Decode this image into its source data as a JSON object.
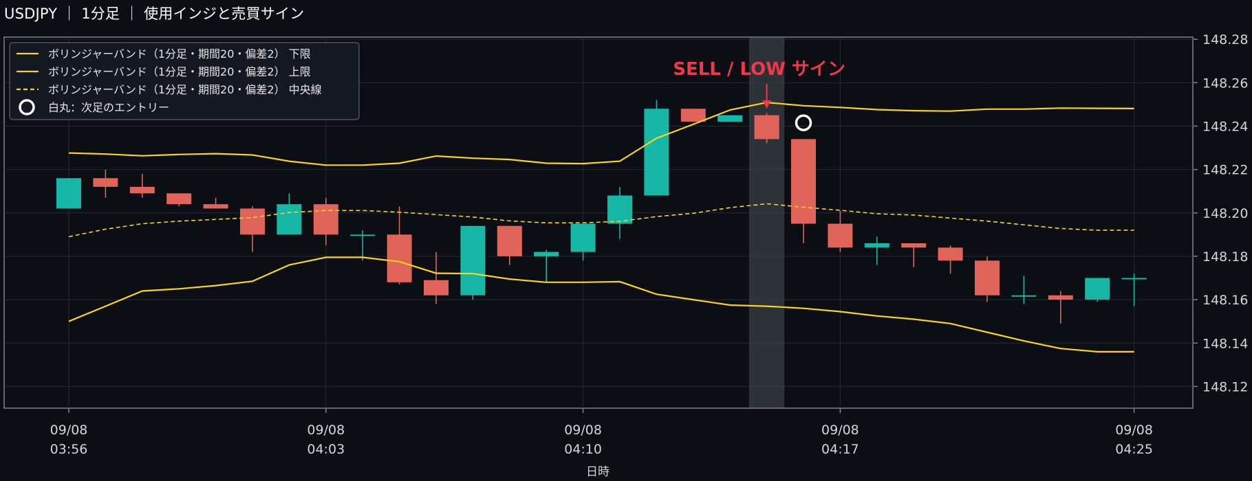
{
  "header": {
    "title": "USDJPY ｜ 1分足 ｜ 使用インジと売買サイン"
  },
  "colors": {
    "background": "#0b0e13",
    "up": "#16b7a6",
    "down": "#e0645a",
    "band": "#ffd21f",
    "signal": "#f2384a",
    "highlight": "#3a3e45",
    "grid": "#262b33",
    "axis": "#7d838c"
  },
  "annotation": {
    "signal_label": "SELL / LOW サイン"
  },
  "chart_data": {
    "type": "candlestick",
    "x": [
      "09/08 03:56",
      "09/08 03:57",
      "09/08 03:58",
      "09/08 03:59",
      "09/08 04:00",
      "09/08 04:01",
      "09/08 04:02",
      "09/08 04:03",
      "09/08 04:04",
      "09/08 04:05",
      "09/08 04:06",
      "09/08 04:07",
      "09/08 04:08",
      "09/08 04:09",
      "09/08 04:10",
      "09/08 04:11",
      "09/08 04:12",
      "09/08 04:13",
      "09/08 04:14",
      "09/08 04:15",
      "09/08 04:16",
      "09/08 04:17",
      "09/08 04:18",
      "09/08 04:19",
      "09/08 04:20",
      "09/08 04:21",
      "09/08 04:22",
      "09/08 04:23",
      "09/08 04:24",
      "09/08 04:25"
    ],
    "ohlc": [
      {
        "o": 148.202,
        "h": 148.216,
        "l": 148.202,
        "c": 148.216
      },
      {
        "o": 148.216,
        "h": 148.22,
        "l": 148.207,
        "c": 148.212
      },
      {
        "o": 148.212,
        "h": 148.218,
        "l": 148.207,
        "c": 148.209
      },
      {
        "o": 148.209,
        "h": 148.209,
        "l": 148.203,
        "c": 148.204
      },
      {
        "o": 148.204,
        "h": 148.207,
        "l": 148.202,
        "c": 148.202
      },
      {
        "o": 148.202,
        "h": 148.203,
        "l": 148.182,
        "c": 148.19
      },
      {
        "o": 148.19,
        "h": 148.209,
        "l": 148.19,
        "c": 148.204
      },
      {
        "o": 148.204,
        "h": 148.207,
        "l": 148.185,
        "c": 148.19
      },
      {
        "o": 148.19,
        "h": 148.192,
        "l": 148.178,
        "c": 148.19
      },
      {
        "o": 148.19,
        "h": 148.203,
        "l": 148.167,
        "c": 148.168
      },
      {
        "o": 148.169,
        "h": 148.182,
        "l": 148.158,
        "c": 148.162
      },
      {
        "o": 148.162,
        "h": 148.194,
        "l": 148.16,
        "c": 148.194
      },
      {
        "o": 148.194,
        "h": 148.194,
        "l": 148.176,
        "c": 148.18
      },
      {
        "o": 148.18,
        "h": 148.183,
        "l": 148.168,
        "c": 148.182
      },
      {
        "o": 148.182,
        "h": 148.195,
        "l": 148.178,
        "c": 148.195
      },
      {
        "o": 148.195,
        "h": 148.212,
        "l": 148.188,
        "c": 148.208
      },
      {
        "o": 148.208,
        "h": 148.252,
        "l": 148.208,
        "c": 148.248
      },
      {
        "o": 148.248,
        "h": 148.248,
        "l": 148.242,
        "c": 148.242
      },
      {
        "o": 148.242,
        "h": 148.245,
        "l": 148.242,
        "c": 148.245
      },
      {
        "o": 148.245,
        "h": 148.246,
        "l": 148.232,
        "c": 148.234
      },
      {
        "o": 148.234,
        "h": 148.234,
        "l": 148.186,
        "c": 148.195
      },
      {
        "o": 148.195,
        "h": 148.201,
        "l": 148.182,
        "c": 148.184
      },
      {
        "o": 148.184,
        "h": 148.189,
        "l": 148.176,
        "c": 148.186
      },
      {
        "o": 148.186,
        "h": 148.186,
        "l": 148.175,
        "c": 148.184
      },
      {
        "o": 148.184,
        "h": 148.185,
        "l": 148.172,
        "c": 148.178
      },
      {
        "o": 148.178,
        "h": 148.18,
        "l": 148.159,
        "c": 148.162
      },
      {
        "o": 148.162,
        "h": 148.171,
        "l": 148.158,
        "c": 148.162
      },
      {
        "o": 148.162,
        "h": 148.164,
        "l": 148.149,
        "c": 148.16
      },
      {
        "o": 148.16,
        "h": 148.17,
        "l": 148.159,
        "c": 148.17
      },
      {
        "o": 148.17,
        "h": 148.172,
        "l": 148.157,
        "c": 148.17
      }
    ],
    "series": [
      {
        "name": "ボリンジャーバンド（1分足・期間20・偏差2） 下限",
        "style": "solid",
        "color": "#ffd21f",
        "values": [
          148.15,
          148.157,
          148.164,
          148.165,
          148.1665,
          148.1685,
          148.176,
          148.1795,
          148.1795,
          148.1775,
          148.1722,
          148.172,
          148.1695,
          148.168,
          148.168,
          148.1683,
          148.1625,
          148.16,
          148.1575,
          148.157,
          148.156,
          148.1545,
          148.1525,
          148.151,
          148.149,
          148.145,
          148.141,
          148.1375,
          148.136,
          148.136
        ]
      },
      {
        "name": "ボリンジャーバンド（1分足・期間20・偏差2） 上限",
        "style": "solid",
        "color": "#ffd21f",
        "values": [
          148.2276,
          148.2271,
          148.2263,
          148.2269,
          148.2273,
          148.2267,
          148.2238,
          148.222,
          148.222,
          148.2229,
          148.2262,
          148.2252,
          148.2246,
          148.2229,
          148.2227,
          148.2238,
          148.2344,
          148.2408,
          148.2474,
          148.2509,
          148.2494,
          148.2486,
          148.2476,
          148.2471,
          148.2469,
          148.2478,
          148.2478,
          148.2483,
          148.2482,
          148.2481
        ]
      },
      {
        "name": "ボリンジャーバンド（1分足・期間20・偏差2） 中央線",
        "style": "dashed",
        "color": "#ffd21f",
        "values": [
          148.189,
          148.1925,
          148.195,
          148.1962,
          148.197,
          148.1978,
          148.2002,
          148.2011,
          148.2011,
          148.2003,
          148.1992,
          148.1981,
          148.1963,
          148.1954,
          148.1954,
          148.1961,
          148.1983,
          148.1998,
          148.2024,
          148.2042,
          148.2026,
          148.2012,
          148.1996,
          148.199,
          148.1976,
          148.1962,
          148.1945,
          148.1928,
          148.192,
          148.192
        ]
      },
      {
        "name": "白丸：次足のエントリー",
        "type": "marker",
        "points": [
          {
            "x": "09/08 04:16",
            "y": 148.2415
          }
        ]
      }
    ],
    "signal": {
      "x": "09/08 04:15",
      "type": "SELL / LOW サイン"
    },
    "highlight_x": "09/08 04:15",
    "xticks": [
      {
        "date": "09/08",
        "time": "03:56"
      },
      {
        "date": "09/08",
        "time": "04:03"
      },
      {
        "date": "09/08",
        "time": "04:10"
      },
      {
        "date": "09/08",
        "time": "04:17"
      },
      {
        "date": "09/08",
        "time": "04:25"
      }
    ],
    "yticks": [
      "148.12",
      "148.14",
      "148.16",
      "148.18",
      "148.20",
      "148.22",
      "148.24",
      "148.26",
      "148.28"
    ],
    "ylim": [
      148.11,
      148.281
    ],
    "xlabel": "日時",
    "ylabel": "",
    "grid": true,
    "legend_position": "top-left"
  }
}
